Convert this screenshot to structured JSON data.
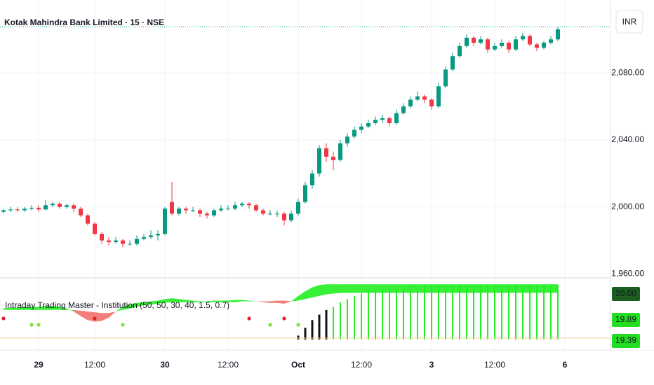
{
  "chart_data": {
    "type": "candlestick",
    "title": "Kotak Mahindra Bank Limited · 15 · NSE",
    "currency_button": "INR",
    "categories": [
      null,
      null,
      null,
      null,
      null,
      "29",
      null,
      null,
      null,
      null,
      null,
      null,
      null,
      "12:00",
      null,
      null,
      null,
      null,
      null,
      null,
      null,
      null,
      null,
      "30",
      null,
      null,
      null,
      null,
      null,
      null,
      null,
      null,
      "12:00",
      null,
      null,
      null,
      null,
      null,
      null,
      null,
      null,
      null,
      "Oct",
      null,
      null,
      null,
      null,
      null,
      null,
      null,
      null,
      "12:00",
      null,
      null,
      null,
      null,
      null,
      null,
      null,
      null,
      null,
      "3",
      null,
      null,
      null,
      null,
      null,
      null,
      null,
      null,
      "12:00",
      null,
      null,
      null,
      null,
      null,
      null,
      null,
      null,
      null,
      "6"
    ],
    "ohlc": [
      [
        1997,
        1999,
        1996,
        1998
      ],
      [
        1998,
        2000,
        1997,
        1998.5
      ],
      [
        1998.5,
        2000,
        1997,
        1998
      ],
      [
        1998,
        2000,
        1997,
        1999
      ],
      [
        1999,
        2001,
        1998,
        1999.5
      ],
      [
        1999.5,
        2001,
        1997,
        1998.5
      ],
      [
        1998.5,
        2004,
        1998,
        2001
      ],
      [
        2001,
        2003,
        2000,
        2002
      ],
      [
        2002,
        2003,
        1999,
        2000
      ],
      [
        2000,
        2002,
        1999,
        2001
      ],
      [
        2001,
        2002,
        1997,
        1999
      ],
      [
        1999,
        2000,
        1994,
        1995
      ],
      [
        1995,
        1996,
        1989,
        1990
      ],
      [
        1990,
        1991,
        1983,
        1984
      ],
      [
        1984,
        1985,
        1978,
        1980
      ],
      [
        1980,
        1982,
        1977,
        1979
      ],
      [
        1979,
        1982,
        1978,
        1980
      ],
      [
        1980,
        1981,
        1976,
        1978
      ],
      [
        1978,
        1980,
        1977,
        1978
      ],
      [
        1978,
        1983,
        1977,
        1981
      ],
      [
        1981,
        1984,
        1980,
        1982
      ],
      [
        1982,
        1986,
        1981,
        1983
      ],
      [
        1983,
        1986,
        1980,
        1984
      ],
      [
        1984,
        2000,
        1983,
        1999
      ],
      [
        2003,
        2015,
        1995,
        1996
      ],
      [
        1996,
        2000,
        1995,
        1999
      ],
      [
        1999,
        2000,
        1996,
        1998
      ],
      [
        1998,
        2000,
        1997,
        1998
      ],
      [
        1998,
        1999,
        1994,
        1996
      ],
      [
        1996,
        1997,
        1993,
        1995
      ],
      [
        1995,
        1999,
        1994,
        1998
      ],
      [
        1998,
        2001,
        1997,
        1999
      ],
      [
        1999,
        2001,
        1998,
        1999
      ],
      [
        1999,
        2003,
        1998,
        2001
      ],
      [
        2001,
        2003,
        2000,
        2002
      ],
      [
        2002,
        2003,
        1999,
        2001
      ],
      [
        2001,
        2002,
        1997,
        1998
      ],
      [
        1998,
        1999,
        1995,
        1996
      ],
      [
        1996,
        1998,
        1995,
        1996
      ],
      [
        1996,
        1998,
        1994,
        1996
      ],
      [
        1996,
        1997,
        1989,
        1992
      ],
      [
        1992,
        1998,
        1991,
        1996
      ],
      [
        1996,
        2005,
        1995,
        2003
      ],
      [
        2003,
        2015,
        2002,
        2013
      ],
      [
        2013,
        2022,
        2011,
        2020
      ],
      [
        2020,
        2037,
        2018,
        2035
      ],
      [
        2035,
        2038,
        2027,
        2030
      ],
      [
        2030,
        2033,
        2022,
        2028
      ],
      [
        2028,
        2040,
        2027,
        2038
      ],
      [
        2038,
        2044,
        2036,
        2042
      ],
      [
        2042,
        2048,
        2041,
        2046
      ],
      [
        2046,
        2050,
        2044,
        2048
      ],
      [
        2048,
        2052,
        2047,
        2050
      ],
      [
        2050,
        2054,
        2049,
        2052
      ],
      [
        2052,
        2055,
        2050,
        2053
      ],
      [
        2053,
        2054,
        2048,
        2050
      ],
      [
        2050,
        2058,
        2049,
        2056
      ],
      [
        2056,
        2062,
        2055,
        2060
      ],
      [
        2060,
        2066,
        2059,
        2064
      ],
      [
        2064,
        2069,
        2063,
        2066
      ],
      [
        2066,
        2067,
        2062,
        2064
      ],
      [
        2064,
        2065,
        2058,
        2060
      ],
      [
        2060,
        2074,
        2059,
        2072
      ],
      [
        2072,
        2084,
        2071,
        2082
      ],
      [
        2082,
        2092,
        2081,
        2090
      ],
      [
        2090,
        2098,
        2089,
        2096
      ],
      [
        2096,
        2103,
        2095,
        2101
      ],
      [
        2101,
        2102,
        2096,
        2098
      ],
      [
        2098,
        2102,
        2097,
        2100
      ],
      [
        2100,
        2101,
        2092,
        2094
      ],
      [
        2094,
        2098,
        2093,
        2096
      ],
      [
        2096,
        2100,
        2095,
        2098
      ],
      [
        2098,
        2099,
        2092,
        2094
      ],
      [
        2094,
        2102,
        2093,
        2100
      ],
      [
        2100,
        2104,
        2099,
        2102
      ],
      [
        2102,
        2103,
        2096,
        2097
      ],
      [
        2097,
        2098,
        2093,
        2095
      ],
      [
        2095,
        2099,
        2094,
        2098
      ],
      [
        2098,
        2102,
        2097,
        2100
      ],
      [
        2100,
        2107.5,
        2099,
        2106
      ],
      null
    ],
    "up_color": "#089981",
    "down_color": "#f23645",
    "last_price": 2107.5,
    "ylim": [
      1958.5,
      2123.5
    ],
    "yticks": [
      {
        "value": 1960,
        "label": "1,960.00"
      },
      {
        "value": 2000,
        "label": "2,000.00"
      },
      {
        "value": 2040,
        "label": "2,040.00"
      },
      {
        "value": 2080,
        "label": "2,080.00"
      }
    ],
    "grid": true,
    "indicator": {
      "title": "Intraday Trading Master - Institution (50, 50, 30, 40, 1.5, 0.7)",
      "ylim": [
        19.3,
        20.02
      ],
      "fast": [
        19.7,
        19.71,
        19.71,
        19.72,
        19.72,
        19.72,
        19.73,
        19.73,
        19.72,
        19.7,
        19.66,
        19.6,
        19.55,
        19.53,
        19.54,
        19.58,
        19.66,
        19.72,
        19.75,
        19.77,
        19.78,
        19.79,
        19.8,
        19.82,
        19.83,
        19.82,
        19.81,
        19.8,
        19.79,
        19.79,
        19.8,
        19.8,
        19.8,
        19.81,
        19.81,
        19.8,
        19.79,
        19.78,
        19.77,
        19.77,
        19.76,
        19.79,
        19.86,
        19.92,
        19.97,
        20.0,
        20.01,
        20.01,
        20.01,
        20.01,
        20.01,
        20.01,
        20.01,
        20.01,
        20.01,
        20.01,
        20.01,
        20.01,
        20.01,
        20.01,
        20.01,
        20.01,
        20.01,
        20.01,
        20.01,
        20.01,
        20.01,
        20.01,
        20.01,
        20.01,
        20.01,
        20.01,
        20.01,
        20.01,
        20.01,
        20.01,
        20.01,
        20.01,
        20.01,
        20.01,
        null
      ],
      "slow": [
        19.68,
        19.68,
        19.68,
        19.68,
        19.68,
        19.68,
        19.68,
        19.68,
        19.68,
        19.68,
        19.68,
        19.67,
        19.66,
        19.65,
        19.64,
        19.64,
        19.66,
        19.68,
        19.7,
        19.72,
        19.74,
        19.75,
        19.76,
        19.77,
        19.78,
        19.78,
        19.78,
        19.78,
        19.78,
        19.78,
        19.78,
        19.78,
        19.78,
        19.78,
        19.79,
        19.79,
        19.79,
        19.79,
        19.79,
        19.8,
        19.8,
        19.79,
        19.8,
        19.82,
        19.84,
        19.86,
        19.88,
        19.89,
        19.9,
        19.9,
        19.9,
        19.9,
        19.9,
        19.9,
        19.9,
        19.9,
        19.9,
        19.9,
        19.9,
        19.9,
        19.9,
        19.9,
        19.9,
        19.9,
        19.9,
        19.9,
        19.9,
        19.9,
        19.9,
        19.9,
        19.9,
        19.9,
        19.9,
        19.9,
        19.9,
        19.9,
        19.9,
        19.9,
        19.9,
        19.9,
        null
      ],
      "up_fill": "#22ee22",
      "down_fill": "#ef5350",
      "histogram": [
        null,
        null,
        null,
        null,
        null,
        null,
        null,
        null,
        null,
        null,
        null,
        null,
        null,
        null,
        null,
        null,
        null,
        null,
        null,
        null,
        null,
        null,
        null,
        null,
        null,
        null,
        null,
        null,
        null,
        null,
        null,
        null,
        null,
        null,
        null,
        null,
        null,
        null,
        null,
        null,
        null,
        null,
        19.35,
        19.45,
        19.55,
        19.62,
        19.68,
        19.72,
        19.78,
        19.82,
        19.86,
        19.89,
        19.92,
        19.94,
        19.96,
        19.97,
        19.98,
        19.99,
        20.0,
        20.0,
        20.0,
        20.0,
        20.0,
        20.0,
        20.0,
        20.0,
        20.0,
        20.0,
        20.0,
        20.0,
        20.0,
        20.0,
        20.0,
        20.0,
        20.0,
        20.0,
        20.0,
        20.0,
        20.0,
        20.0,
        null
      ],
      "histogram_colors": [
        null,
        null,
        null,
        null,
        null,
        null,
        null,
        null,
        null,
        null,
        null,
        null,
        null,
        null,
        null,
        null,
        null,
        null,
        null,
        null,
        null,
        null,
        null,
        null,
        null,
        null,
        null,
        null,
        null,
        null,
        null,
        null,
        null,
        null,
        null,
        null,
        null,
        null,
        null,
        null,
        null,
        null,
        "#111111",
        "#111111",
        "#111111",
        "#111111",
        "#111111",
        "#22ee22",
        "#22ee22",
        "#22ee22",
        "#22ee22",
        "#22ee22",
        "#22ee22",
        "#22ee22",
        "#22ee22",
        "#22ee22",
        "#22ee22",
        "#22ee22",
        "#22ee22",
        "#22ee22",
        "#22ee22",
        "#22ee22",
        "#22ee22",
        "#22ee22",
        "#22ee22",
        "#22ee22",
        "#22ee22",
        "#22ee22",
        "#22ee22",
        "#22ee22",
        "#22ee22",
        "#22ee22",
        "#22ee22",
        "#22ee22",
        "#22ee22",
        "#22ee22",
        "#22ee22",
        "#22ee22",
        "#22ee22",
        "#22ee22",
        null
      ],
      "buy_signals": [
        4,
        5,
        17,
        38,
        42
      ],
      "sell_signals": [
        0,
        13,
        35,
        40
      ],
      "buy_color": "#7ee33a",
      "sell_color": "#e0202a",
      "price_tags": [
        {
          "value": 20.0,
          "label": "20.00",
          "color": "#1b5e20"
        },
        {
          "value": 19.89,
          "label": "19.89",
          "color": "#22dd22"
        },
        {
          "value": 19.39,
          "label": "19.39",
          "color": "#22dd22"
        }
      ]
    }
  }
}
